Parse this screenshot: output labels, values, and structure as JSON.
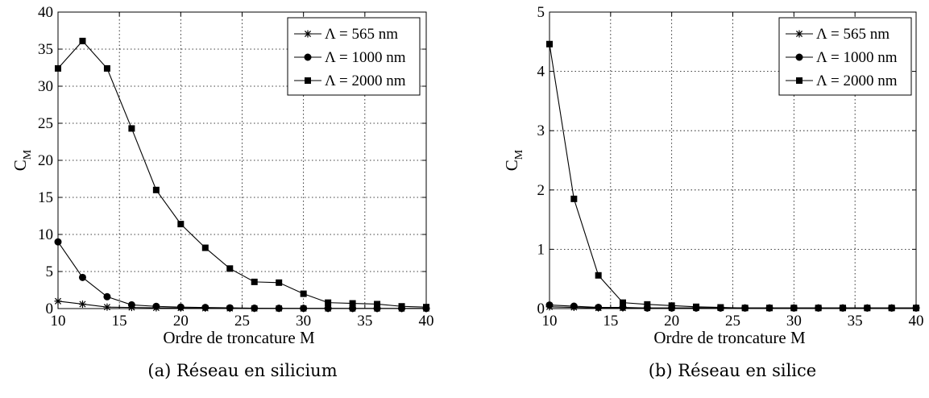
{
  "chart_data": [
    {
      "type": "line",
      "caption": "(a) Réseau en silicium",
      "xlabel": "Ordre de troncature M",
      "ylabel_main": "C",
      "ylabel_sub": "M",
      "xlim": [
        10,
        40
      ],
      "ylim": [
        0,
        40
      ],
      "xticks": [
        10,
        15,
        20,
        25,
        30,
        35,
        40
      ],
      "yticks": [
        0,
        5,
        10,
        15,
        20,
        25,
        30,
        35,
        40
      ],
      "grid": true,
      "legend_position": "top-right",
      "x": [
        10,
        12,
        14,
        16,
        18,
        20,
        22,
        24,
        26,
        28,
        30,
        32,
        34,
        36,
        38,
        40
      ],
      "series": [
        {
          "name": "Λ = 565 nm",
          "marker": "star",
          "values": [
            1.0,
            0.6,
            0.2,
            0.15,
            0.1,
            0.08,
            0.05,
            0.03,
            0.02,
            0.02,
            0.01,
            0.01,
            0.01,
            0.01,
            0.01,
            0.01
          ]
        },
        {
          "name": "Λ = 1000 nm",
          "marker": "circle",
          "values": [
            9.0,
            4.2,
            1.6,
            0.5,
            0.3,
            0.2,
            0.15,
            0.1,
            0.05,
            0.04,
            0.03,
            0.03,
            0.02,
            0.02,
            0.02,
            0.02
          ]
        },
        {
          "name": "Λ = 2000 nm",
          "marker": "square",
          "values": [
            32.4,
            36.1,
            32.4,
            24.3,
            16.0,
            11.4,
            8.2,
            5.4,
            3.6,
            3.5,
            2.0,
            0.8,
            0.7,
            0.6,
            0.3,
            0.2
          ]
        }
      ]
    },
    {
      "type": "line",
      "caption": "(b) Réseau en silice",
      "xlabel": "Ordre de troncature M",
      "ylabel_main": "C",
      "ylabel_sub": "M",
      "xlim": [
        10,
        40
      ],
      "ylim": [
        0,
        5
      ],
      "xticks": [
        10,
        15,
        20,
        25,
        30,
        35,
        40
      ],
      "yticks": [
        0,
        1,
        2,
        3,
        4,
        5
      ],
      "grid": true,
      "legend_position": "top-right",
      "x": [
        10,
        12,
        14,
        16,
        18,
        20,
        22,
        24,
        26,
        28,
        30,
        32,
        34,
        36,
        38,
        40
      ],
      "series": [
        {
          "name": "Λ = 565 nm",
          "marker": "star",
          "values": [
            0.03,
            0.02,
            0.01,
            0.01,
            0.01,
            0.01,
            0.01,
            0.01,
            0.01,
            0.01,
            0.01,
            0.01,
            0.01,
            0.01,
            0.01,
            0.01
          ]
        },
        {
          "name": "Λ = 1000 nm",
          "marker": "circle",
          "values": [
            0.06,
            0.04,
            0.02,
            0.02,
            0.01,
            0.01,
            0.01,
            0.01,
            0.01,
            0.01,
            0.01,
            0.01,
            0.01,
            0.01,
            0.01,
            0.01
          ]
        },
        {
          "name": "Λ = 2000 nm",
          "marker": "square",
          "values": [
            4.46,
            1.85,
            0.56,
            0.1,
            0.07,
            0.05,
            0.03,
            0.02,
            0.01,
            0.01,
            0.01,
            0.01,
            0.01,
            0.01,
            0.01,
            0.01
          ]
        }
      ]
    }
  ]
}
